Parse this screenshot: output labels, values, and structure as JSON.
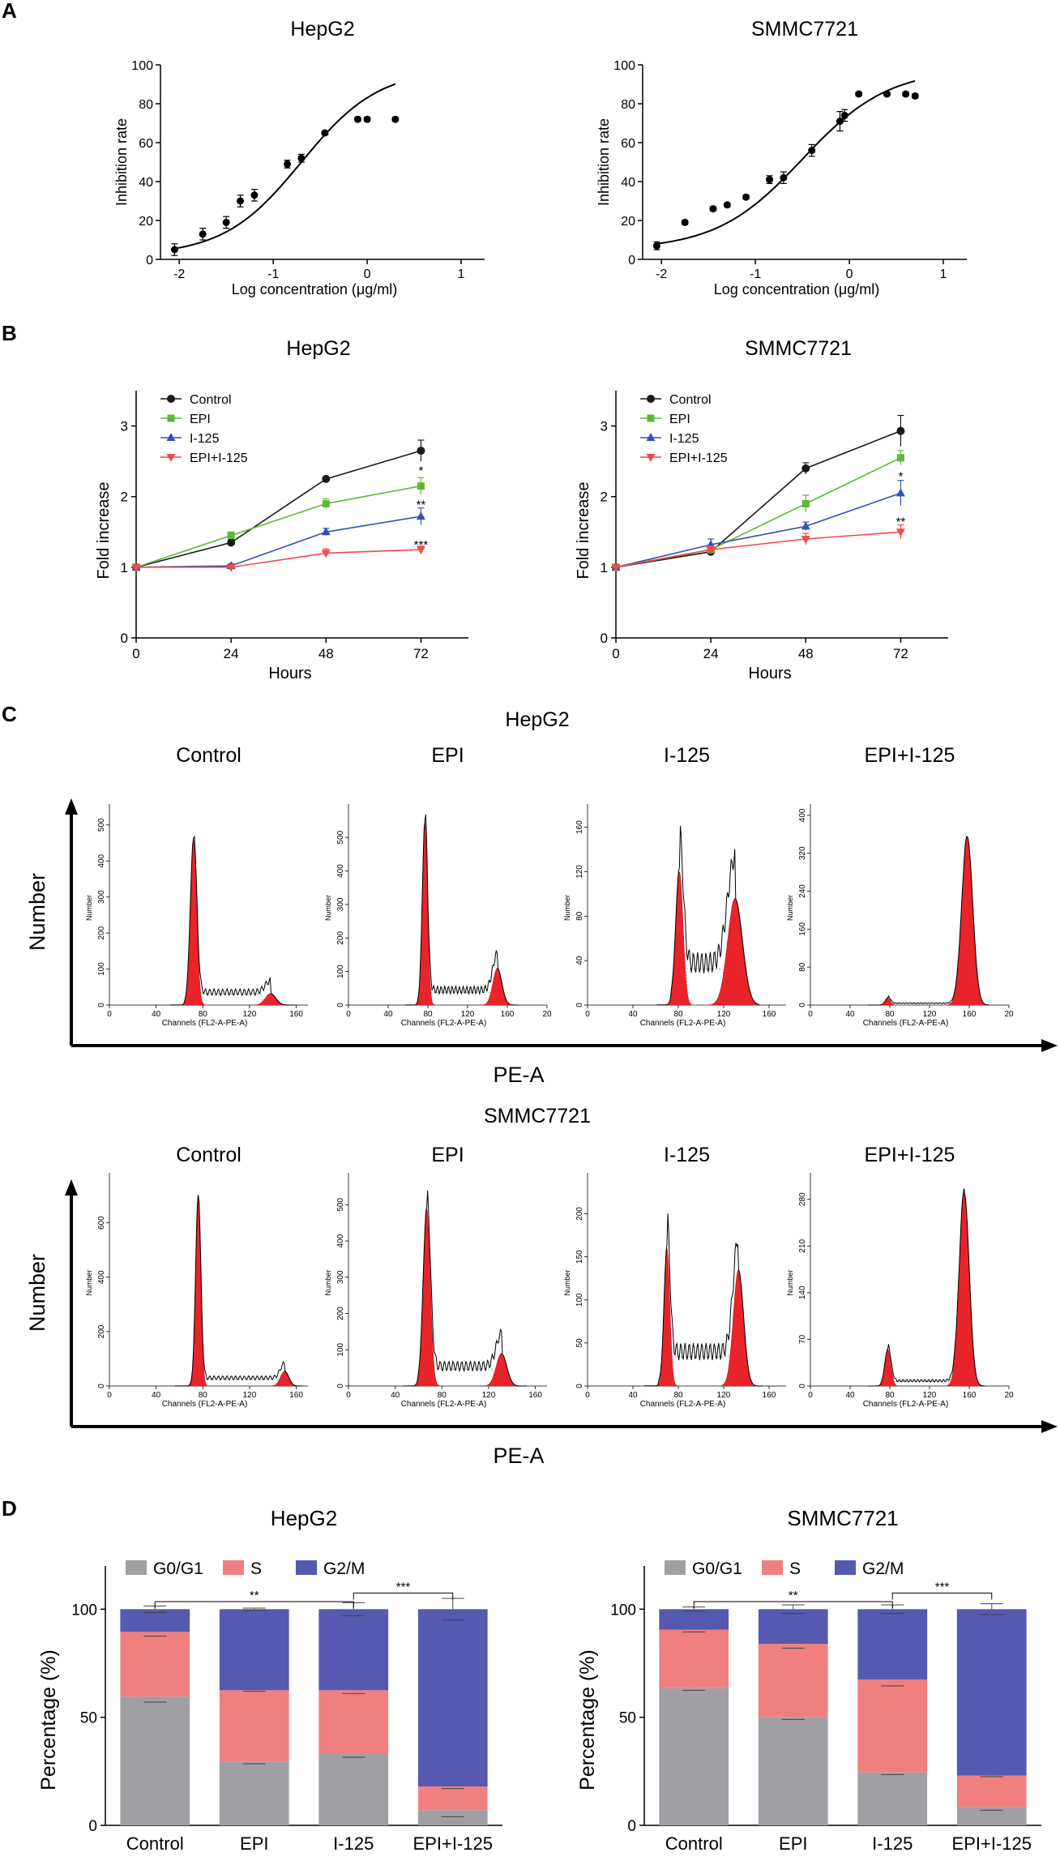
{
  "panel_labels": [
    "A",
    "B",
    "C",
    "D"
  ],
  "colors": {
    "control": "#1a1a1a",
    "epi": "#5cb83a",
    "i125": "#3b4fb3",
    "combo": "#f04a4a",
    "g0g1": "#a0a0a4",
    "s": "#f08080",
    "g2m": "#5559b0",
    "peak_fill": "#e8242a"
  },
  "chart_data": [
    {
      "id": "A-hepg2",
      "type": "scatter",
      "title": "HepG2",
      "xlabel": "Log concentration (μg/ml)",
      "ylabel": "Inhibition rate",
      "xlim": [
        -2.2,
        1.25
      ],
      "ylim": [
        0,
        100
      ],
      "xticks": [
        -2,
        -1,
        0,
        1
      ],
      "yticks": [
        0,
        20,
        40,
        60,
        80,
        100
      ],
      "points": [
        {
          "x": -2.05,
          "y": 5,
          "err": 3
        },
        {
          "x": -1.75,
          "y": 13,
          "err": 3
        },
        {
          "x": -1.5,
          "y": 19,
          "err": 3
        },
        {
          "x": -1.35,
          "y": 30,
          "err": 3
        },
        {
          "x": -1.2,
          "y": 33,
          "err": 3
        },
        {
          "x": -0.85,
          "y": 49,
          "err": 2
        },
        {
          "x": -0.7,
          "y": 52,
          "err": 2
        },
        {
          "x": -0.45,
          "y": 65,
          "err": 1
        },
        {
          "x": -0.1,
          "y": 72,
          "err": 1
        },
        {
          "x": 0.0,
          "y": 72,
          "err": 1
        },
        {
          "x": 0.3,
          "y": 72,
          "err": 1
        }
      ],
      "curve": {
        "bottom": 2,
        "top": 98,
        "ec50_log": -0.7,
        "hill": 1.05,
        "x_from": -2.05,
        "x_to": 0.3
      }
    },
    {
      "id": "A-smmc",
      "type": "scatter",
      "title": "SMMC7721",
      "xlabel": "Log concentration (μg/ml)",
      "ylabel": "Inhibition rate",
      "xlim": [
        -2.2,
        1.25
      ],
      "ylim": [
        0,
        100
      ],
      "xticks": [
        -2,
        -1,
        0,
        1
      ],
      "yticks": [
        0,
        20,
        40,
        60,
        80,
        100
      ],
      "points": [
        {
          "x": -2.05,
          "y": 7,
          "err": 2
        },
        {
          "x": -1.75,
          "y": 19,
          "err": 1
        },
        {
          "x": -1.45,
          "y": 26,
          "err": 1
        },
        {
          "x": -1.3,
          "y": 28,
          "err": 1
        },
        {
          "x": -1.1,
          "y": 32,
          "err": 1
        },
        {
          "x": -0.85,
          "y": 41,
          "err": 2
        },
        {
          "x": -0.7,
          "y": 42,
          "err": 3
        },
        {
          "x": -0.4,
          "y": 56,
          "err": 3
        },
        {
          "x": -0.1,
          "y": 71,
          "err": 5
        },
        {
          "x": -0.05,
          "y": 74,
          "err": 3
        },
        {
          "x": 0.1,
          "y": 85,
          "err": 1
        },
        {
          "x": 0.4,
          "y": 85,
          "err": 1
        },
        {
          "x": 0.6,
          "y": 85,
          "err": 1
        },
        {
          "x": 0.7,
          "y": 84,
          "err": 1
        }
      ],
      "curve": {
        "bottom": 5,
        "top": 98,
        "ec50_log": -0.5,
        "hill": 0.95,
        "x_from": -2.05,
        "x_to": 0.7
      }
    },
    {
      "id": "B-hepg2",
      "type": "line",
      "title": "HepG2",
      "xlabel": "Hours",
      "ylabel": "Fold increase",
      "x": [
        0,
        24,
        48,
        72
      ],
      "xlim": [
        0,
        84
      ],
      "ylim": [
        0,
        3.5
      ],
      "yticks": [
        0,
        1,
        2,
        3
      ],
      "legend": [
        "Control",
        "EPI",
        "I-125",
        "EPI+I-125"
      ],
      "series": [
        {
          "name": "Control",
          "key": "control",
          "marker": "circle",
          "values": [
            1,
            1.35,
            2.25,
            2.65
          ],
          "err": [
            0,
            0.05,
            0.02,
            0.15
          ]
        },
        {
          "name": "EPI",
          "key": "epi",
          "marker": "square",
          "values": [
            1,
            1.45,
            1.9,
            2.15
          ],
          "err": [
            0,
            0.05,
            0.07,
            0.12
          ]
        },
        {
          "name": "I-125",
          "key": "i125",
          "marker": "triangle-up",
          "values": [
            1,
            1.02,
            1.5,
            1.72
          ],
          "err": [
            0,
            0.03,
            0.05,
            0.12
          ]
        },
        {
          "name": "EPI+I-125",
          "key": "combo",
          "marker": "triangle-down",
          "values": [
            1,
            1.0,
            1.2,
            1.25
          ],
          "err": [
            0,
            0.02,
            0.06,
            0.05
          ]
        }
      ],
      "annotations": [
        {
          "x": 72,
          "y": 2.38,
          "text": "*"
        },
        {
          "x": 72,
          "y": 1.9,
          "text": "**"
        },
        {
          "x": 72,
          "y": 1.33,
          "text": "***"
        }
      ]
    },
    {
      "id": "B-smmc",
      "type": "line",
      "title": "SMMC7721",
      "xlabel": "Hours",
      "ylabel": "Fold increase",
      "x": [
        0,
        24,
        48,
        72
      ],
      "xlim": [
        0,
        84
      ],
      "ylim": [
        0,
        3.5
      ],
      "yticks": [
        0,
        1,
        2,
        3
      ],
      "legend": [
        "Control",
        "EPI",
        "I-125",
        "EPI+I-125"
      ],
      "series": [
        {
          "name": "Control",
          "key": "control",
          "marker": "circle",
          "values": [
            1,
            1.22,
            2.4,
            2.93
          ],
          "err": [
            0,
            0.05,
            0.08,
            0.22
          ]
        },
        {
          "name": "EPI",
          "key": "epi",
          "marker": "square",
          "values": [
            1,
            1.25,
            1.9,
            2.55
          ],
          "err": [
            0,
            0.05,
            0.12,
            0.1
          ]
        },
        {
          "name": "I-125",
          "key": "i125",
          "marker": "triangle-up",
          "values": [
            1,
            1.32,
            1.58,
            2.05
          ],
          "err": [
            0,
            0.08,
            0.06,
            0.18
          ]
        },
        {
          "name": "EPI+I-125",
          "key": "combo",
          "marker": "triangle-down",
          "values": [
            1,
            1.25,
            1.4,
            1.5
          ],
          "err": [
            0,
            0.05,
            0.08,
            0.1
          ]
        }
      ],
      "annotations": [
        {
          "x": 72,
          "y": 2.3,
          "text": "*"
        },
        {
          "x": 72,
          "y": 1.66,
          "text": "**"
        }
      ]
    },
    {
      "id": "C-hepg2",
      "type": "histogram",
      "title": "HepG2",
      "ylabel": "Number",
      "xlabel": "PE-A",
      "sub_xlabel": "Channels (FL2-A-PE-A)",
      "sub_ylabel": "Number",
      "panels": [
        {
          "label": "Control",
          "xlim": [
            0,
            170
          ],
          "xticks": [
            "0",
            "40",
            "80",
            "120",
            "160"
          ],
          "ymax": 540,
          "yticks": [
            "0",
            "100",
            "200",
            "300",
            "400",
            "500"
          ],
          "g1": {
            "mu": 72,
            "sd": 2.7,
            "h": 460
          },
          "g2": {
            "mu": 138,
            "sd": 4.5,
            "h": 32
          },
          "s_level": 36
        },
        {
          "label": "EPI",
          "xlim": [
            0,
            200
          ],
          "xticks": [
            "0",
            "40",
            "80",
            "120",
            "160",
            "20"
          ],
          "ymax": 580,
          "yticks": [
            "0",
            "100",
            "200",
            "300",
            "400",
            "500"
          ],
          "g1": {
            "mu": 77,
            "sd": 2.6,
            "h": 545
          },
          "g2": {
            "mu": 150,
            "sd": 4.5,
            "h": 110
          },
          "s_level": 45
        },
        {
          "label": "I-125",
          "xlim": [
            0,
            175
          ],
          "xticks": [
            "0",
            "40",
            "80",
            "120",
            "160"
          ],
          "ymax": 175,
          "yticks": [
            "0",
            "40",
            "80",
            "120",
            "160"
          ],
          "g1": {
            "mu": 81,
            "sd": 3.2,
            "h": 120
          },
          "g2": {
            "mu": 130,
            "sd": 6.5,
            "h": 96
          },
          "s_level": 38
        },
        {
          "label": "EPI+I-125",
          "xlim": [
            0,
            200
          ],
          "xticks": [
            "0",
            "40",
            "80",
            "120",
            "160",
            "20"
          ],
          "ymax": 410,
          "yticks": [
            "0",
            "80",
            "160",
            "240",
            "320",
            "400"
          ],
          "g1": {
            "mu": 78,
            "sd": 2.5,
            "h": 15
          },
          "g2": {
            "mu": 158,
            "sd": 5.5,
            "h": 355
          },
          "s_level": 4
        }
      ]
    },
    {
      "id": "C-smmc",
      "type": "histogram",
      "title": "SMMC7721",
      "ylabel": "Number",
      "xlabel": "PE-A",
      "sub_xlabel": "Channels (FL2-A-PE-A)",
      "sub_ylabel": "Number",
      "panels": [
        {
          "label": "Control",
          "xlim": [
            0,
            170
          ],
          "xticks": [
            "0",
            "40",
            "80",
            "120",
            "160"
          ],
          "ymax": 760,
          "yticks": [
            "0",
            "200",
            "400",
            "600"
          ],
          "g1": {
            "mu": 76,
            "sd": 2.2,
            "h": 700
          },
          "g2": {
            "mu": 150,
            "sd": 3.5,
            "h": 55
          },
          "s_level": 30
        },
        {
          "label": "EPI",
          "xlim": [
            0,
            170
          ],
          "xticks": [
            "0",
            "40",
            "80",
            "120",
            "160"
          ],
          "ymax": 570,
          "yticks": [
            "0",
            "100",
            "200",
            "300",
            "400",
            "500"
          ],
          "g1": {
            "mu": 67,
            "sd": 3.0,
            "h": 490
          },
          "g2": {
            "mu": 131,
            "sd": 4.5,
            "h": 90
          },
          "s_level": 55
        },
        {
          "label": "I-125",
          "xlim": [
            0,
            175
          ],
          "xticks": [
            "0",
            "40",
            "80",
            "120",
            "160"
          ],
          "ymax": 240,
          "yticks": [
            "0",
            "50",
            "100",
            "150",
            "200"
          ],
          "g1": {
            "mu": 70,
            "sd": 2.5,
            "h": 160
          },
          "g2": {
            "mu": 133,
            "sd": 4.5,
            "h": 135
          },
          "s_level": 40
        },
        {
          "label": "EPI+I-125",
          "xlim": [
            0,
            200
          ],
          "xticks": [
            "0",
            "40",
            "80",
            "120",
            "160",
            "20"
          ],
          "ymax": 310,
          "yticks": [
            "0",
            "70",
            "140",
            "210",
            "280"
          ],
          "g1": {
            "mu": 78,
            "sd": 3.0,
            "h": 55
          },
          "g2": {
            "mu": 155,
            "sd": 5.0,
            "h": 290
          },
          "s_level": 8
        }
      ]
    },
    {
      "id": "D-hepg2",
      "type": "bar",
      "stacked": true,
      "title": "HepG2",
      "ylabel": "Percentage (%)",
      "ylim": [
        0,
        120
      ],
      "yticks": [
        0,
        50,
        100
      ],
      "categories": [
        "Control",
        "EPI",
        "I-125",
        "EPI+I-125"
      ],
      "legend": [
        "G0/G1",
        "S",
        "G2/M"
      ],
      "series": [
        {
          "name": "G0/G1",
          "key": "g0g1",
          "values": [
            59.5,
            29.5,
            33,
            7
          ],
          "err": [
            2.5,
            1,
            1.5,
            3
          ]
        },
        {
          "name": "S",
          "key": "s",
          "values": [
            30,
            33,
            29.5,
            11
          ],
          "err": [
            2,
            0.5,
            1.5,
            1
          ]
        },
        {
          "name": "G2/M",
          "key": "g2m",
          "values": [
            10.5,
            37.5,
            37.5,
            82
          ],
          "err": [
            1.5,
            0.5,
            3,
            5
          ]
        }
      ],
      "significance": [
        {
          "from": 0,
          "to": 2,
          "text": "**",
          "y": 103.5
        },
        {
          "from": 2,
          "to": 3,
          "text": "***",
          "y": 107.5
        }
      ]
    },
    {
      "id": "D-smmc",
      "type": "bar",
      "stacked": true,
      "title": "SMMC7721",
      "ylabel": "Percentage (%)",
      "ylim": [
        0,
        120
      ],
      "yticks": [
        0,
        50,
        100
      ],
      "categories": [
        "Control",
        "EPI",
        "I-125",
        "EPI+I-125"
      ],
      "legend": [
        "G0/G1",
        "S",
        "G2/M"
      ],
      "series": [
        {
          "name": "G0/G1",
          "key": "g0g1",
          "values": [
            63.5,
            50,
            24.5,
            8.5
          ],
          "err": [
            1,
            1,
            1,
            1.5
          ]
        },
        {
          "name": "S",
          "key": "s",
          "values": [
            27,
            34,
            43,
            14.5
          ],
          "err": [
            1,
            2,
            3,
            0.5
          ]
        },
        {
          "name": "G2/M",
          "key": "g2m",
          "values": [
            9.5,
            16,
            32.5,
            77
          ],
          "err": [
            1,
            2,
            2,
            2.5
          ]
        }
      ],
      "significance": [
        {
          "from": 0,
          "to": 2,
          "text": "**",
          "y": 103.5
        },
        {
          "from": 2,
          "to": 3,
          "text": "***",
          "y": 107.5
        }
      ]
    }
  ]
}
